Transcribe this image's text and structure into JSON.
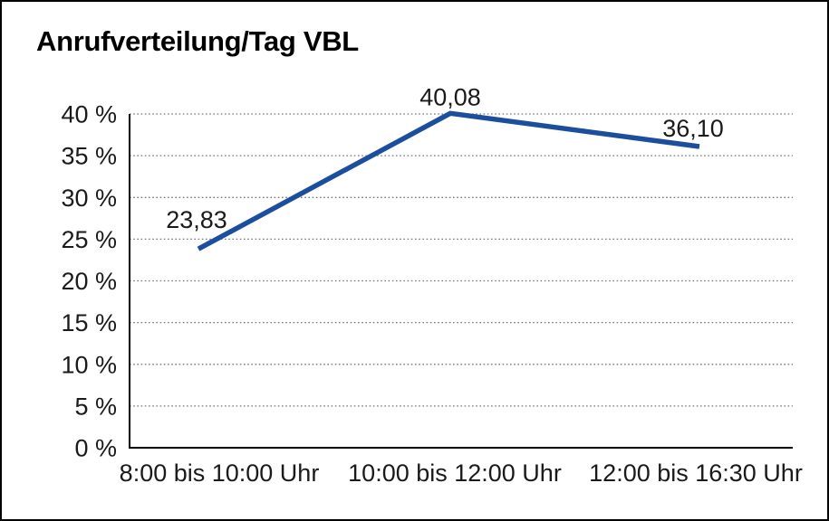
{
  "window": {
    "background": "#ffffff",
    "border_color": "#000000"
  },
  "chart_data": {
    "type": "line",
    "title": "Anrufverteilung/Tag VBL",
    "categories": [
      "8:00 bis 10:00 Uhr",
      "10:00 bis 12:00 Uhr",
      "12:00 bis 16:30 Uhr"
    ],
    "values": [
      23.83,
      40.08,
      36.1
    ],
    "data_labels": [
      "23,83",
      "40,08",
      "36,10"
    ],
    "xlabel": "",
    "ylabel": "",
    "ylim": [
      0,
      40
    ],
    "y_ticks": [
      0,
      5,
      10,
      15,
      20,
      25,
      30,
      35,
      40
    ],
    "y_tick_labels": [
      "0 %",
      "5 %",
      "10 %",
      "15 %",
      "20 %",
      "25 %",
      "30 %",
      "35 %",
      "40 %"
    ],
    "grid": "horizontal-dotted",
    "legend": "none",
    "line_color": "#1b4f9d",
    "text_color": "#1a1a1a",
    "grid_color": "#777777",
    "axis_color": "#000000"
  }
}
